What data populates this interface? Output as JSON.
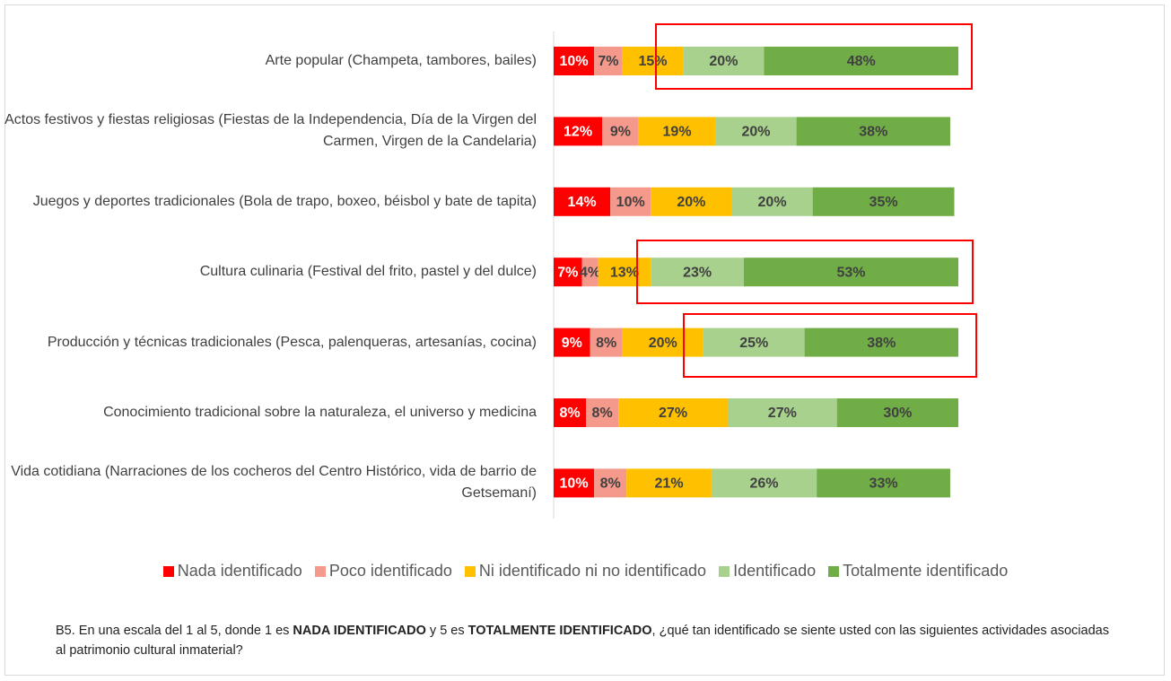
{
  "chart_data": {
    "type": "stacked-bar-horizontal",
    "categories": [
      "Arte popular (Champeta, tambores, bailes)",
      "Actos festivos y fiestas religiosas (Fiestas de la Independencia, Día de la Virgen del Carmen, Virgen de la Candelaria)",
      "Juegos y deportes tradicionales (Bola de trapo, boxeo, béisbol y bate de tapita)",
      "Cultura culinaria (Festival del frito, pastel y del dulce)",
      "Producción y técnicas tradicionales (Pesca, palenqueras, artesanías, cocina)",
      "Conocimiento tradicional sobre la naturaleza, el universo y medicina",
      "Vida cotidiana (Narraciones de los cocheros del Centro Histórico, vida de barrio de Getsemaní)"
    ],
    "series": [
      {
        "name": "Nada identificado",
        "color": "#ff0000",
        "label_color": "#ffffff",
        "values": [
          10,
          12,
          14,
          7,
          9,
          8,
          10
        ],
        "value_labels": [
          "10%",
          "12%",
          "14%",
          "7%",
          "9%",
          "8%",
          "10%"
        ]
      },
      {
        "name": "Poco identificado",
        "color": "#f4998c",
        "label_color": "#404040",
        "values": [
          7,
          9,
          10,
          4,
          8,
          8,
          8
        ],
        "value_labels": [
          "7%",
          "9%",
          "10%",
          "4%",
          "8%",
          "8%",
          "8%"
        ]
      },
      {
        "name": "Ni identificado ni no identificado",
        "color": "#ffc000",
        "label_color": "#404040",
        "values": [
          15,
          19,
          20,
          13,
          20,
          27,
          21
        ],
        "value_labels": [
          "15%",
          "19%",
          "20%",
          "13%",
          "20%",
          "27%",
          "21%"
        ]
      },
      {
        "name": "Identificado",
        "color": "#a9d18e",
        "label_color": "#404040",
        "values": [
          20,
          20,
          20,
          23,
          25,
          27,
          26
        ],
        "value_labels": [
          "20%",
          "20%",
          "20%",
          "23%",
          "25%",
          "27%",
          "26%"
        ]
      },
      {
        "name": "Totalmente identificado",
        "color": "#70ad47",
        "label_color": "#404040",
        "values": [
          48,
          38,
          35,
          53,
          38,
          30,
          33
        ],
        "value_labels": [
          "48%",
          "38%",
          "35%",
          "53%",
          "38%",
          "30%",
          "33%"
        ]
      }
    ],
    "xlim": [
      0,
      100
    ],
    "note": [
      "B5. En una escala del 1 al 5, donde 1 es ",
      "NADA IDENTIFICADO",
      " y 5 es ",
      "TOTALMENTE IDENTIFICADO",
      ", ¿qué tan identificado se siente usted con las siguientes actividades asociadas al patrimonio cultural inmaterial?"
    ]
  }
}
